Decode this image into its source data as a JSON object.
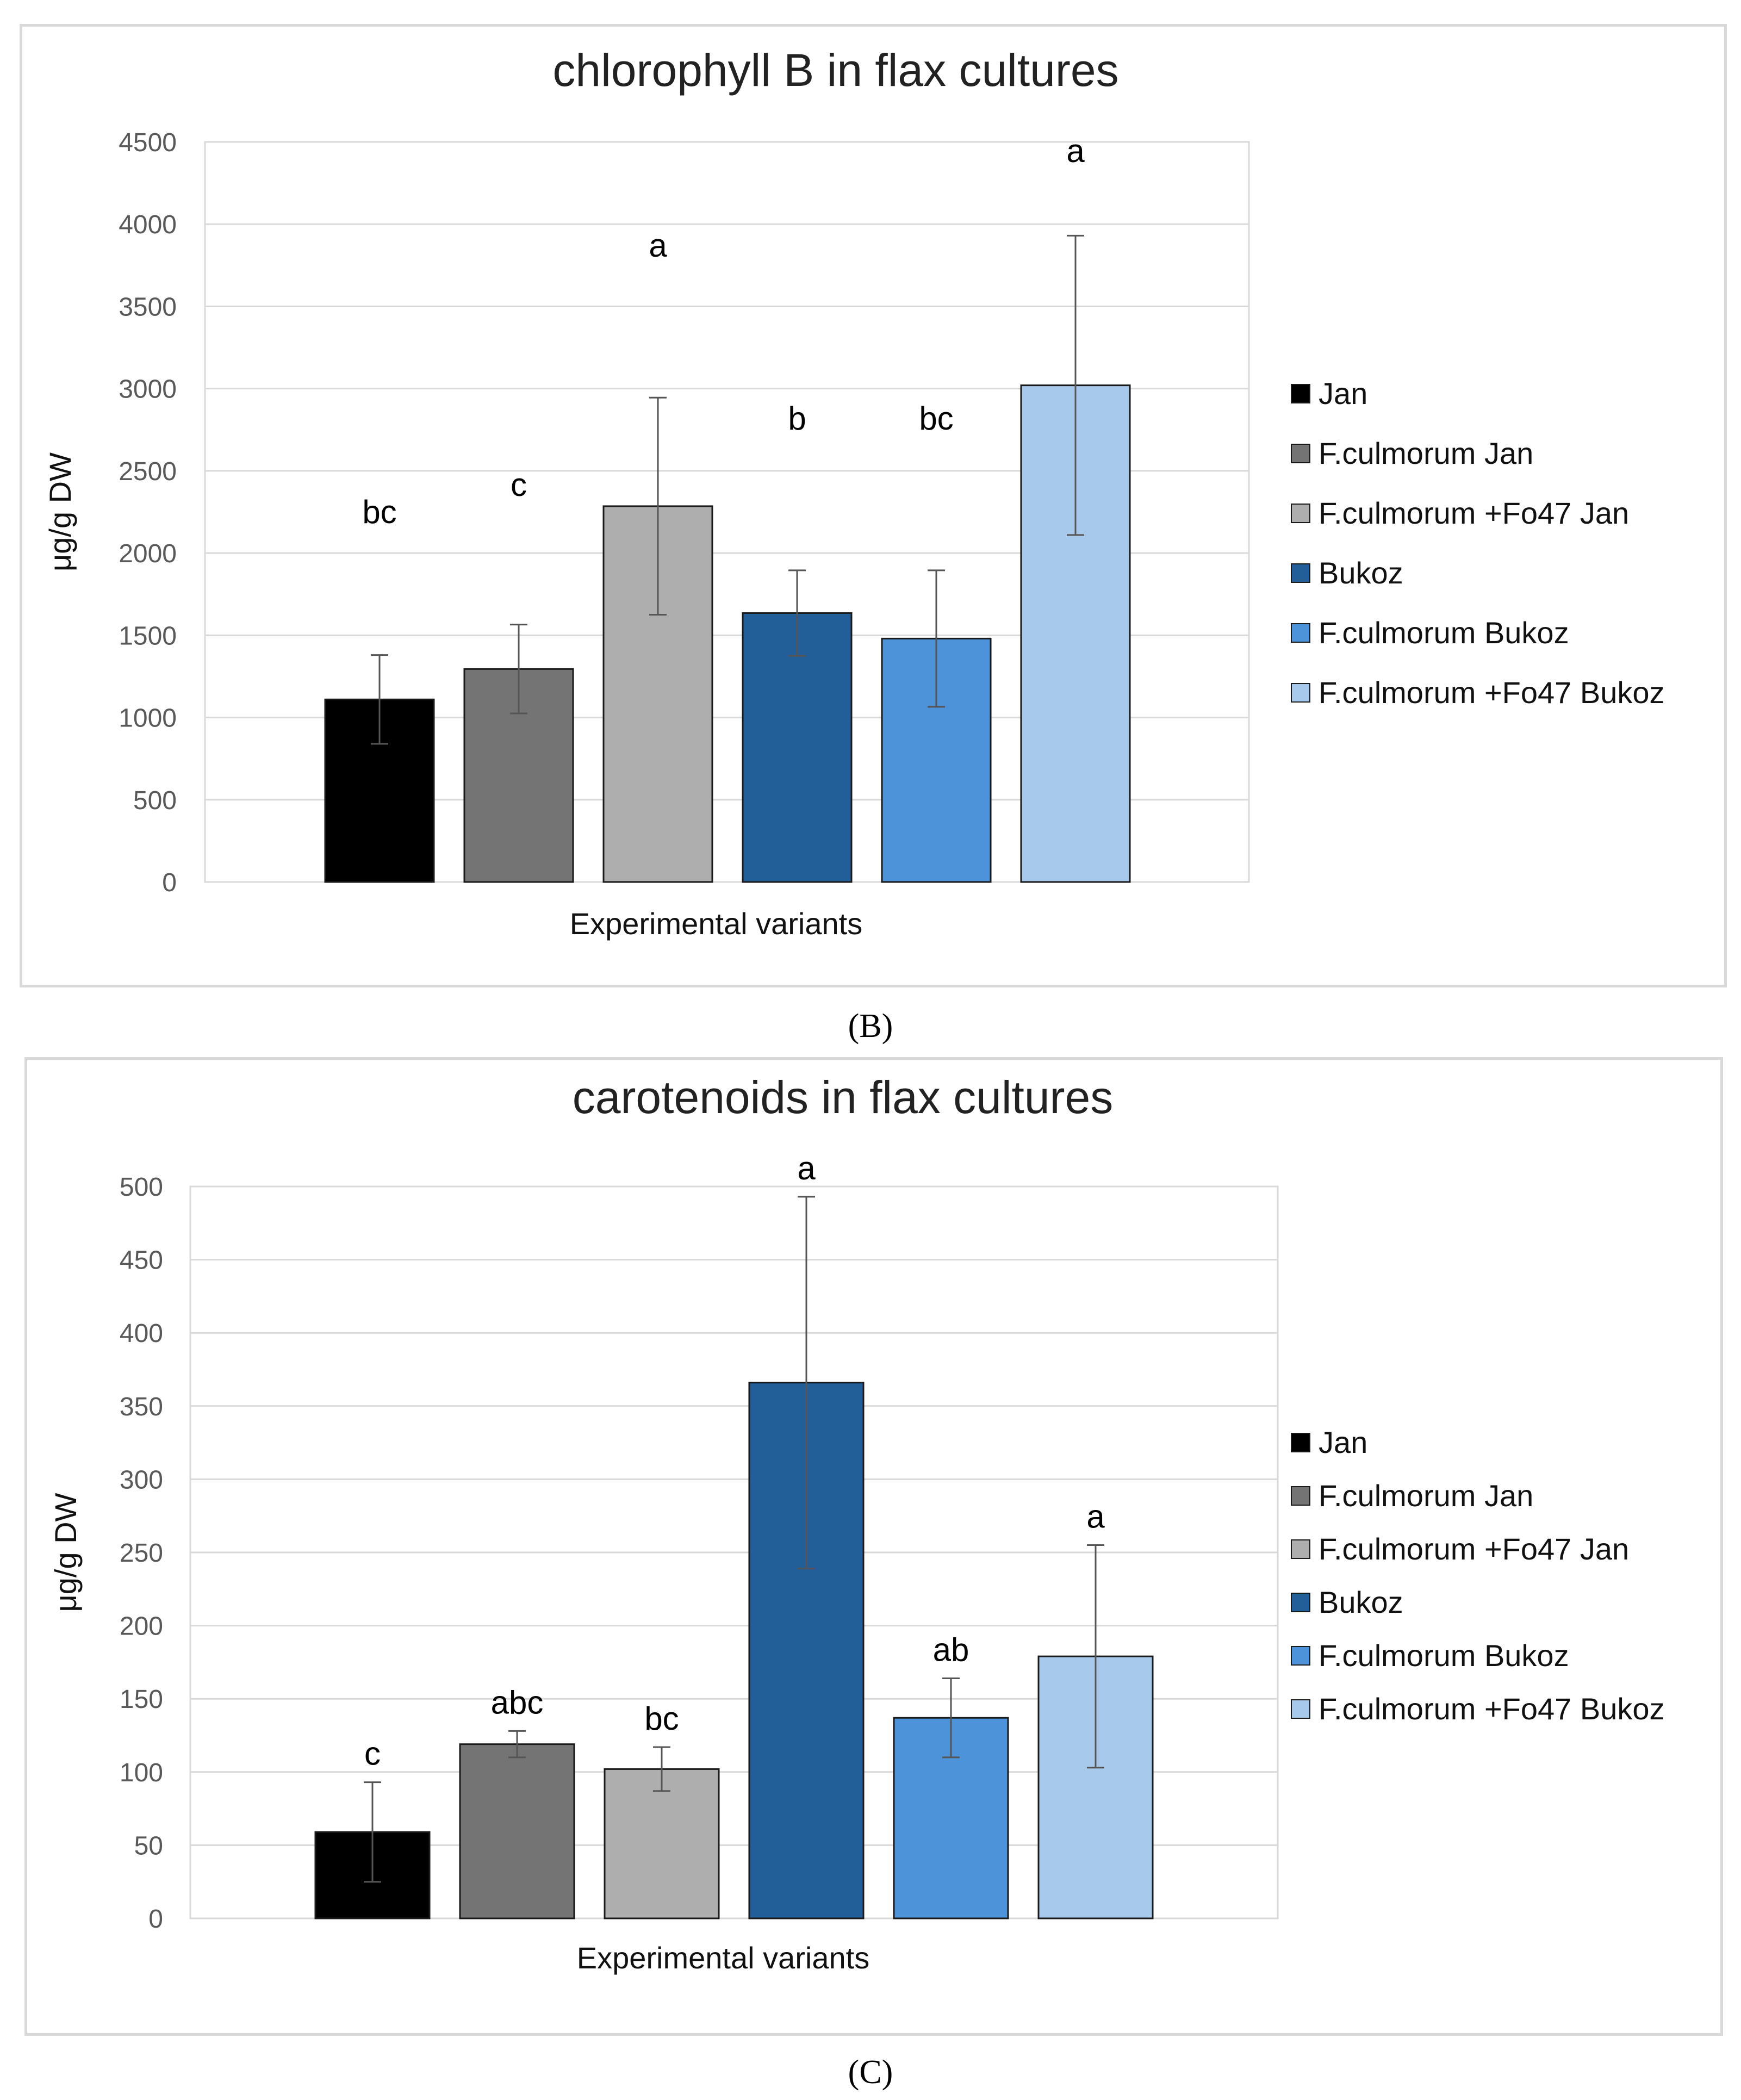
{
  "chart_data": [
    {
      "type": "bar",
      "title": "chlorophyll B in flax cultures",
      "xlabel": "Experimental variants",
      "ylabel": "μg/g DW",
      "ylim": [
        0,
        4500
      ],
      "yticks": [
        0,
        500,
        1000,
        1500,
        2000,
        2500,
        3000,
        3500,
        4000,
        4500
      ],
      "grid": true,
      "legend_position": "right",
      "panel_label": "(B)",
      "series": [
        {
          "name": "Jan",
          "value": 1110,
          "error": 270,
          "letter": "bc",
          "color": "#000000"
        },
        {
          "name": "F.culmorum Jan",
          "value": 1295,
          "error": 270,
          "letter": "c",
          "color": "#747474"
        },
        {
          "name": "F.culmorum +Fo47 Jan",
          "value": 2285,
          "error": 660,
          "letter": "a",
          "color": "#aeaeae"
        },
        {
          "name": "Bukoz",
          "value": 1635,
          "error": 260,
          "letter": "b",
          "color": "#225e98"
        },
        {
          "name": "F.culmorum  Bukoz",
          "value": 1480,
          "error": 415,
          "letter": "bc",
          "color": "#4d93d9"
        },
        {
          "name": "F.culmorum +Fo47 Bukoz",
          "value": 3020,
          "error": 910,
          "letter": "a",
          "color": "#a7c9ec"
        }
      ]
    },
    {
      "type": "bar",
      "title": "carotenoids in flax cultures",
      "xlabel": "Experimental variants",
      "ylabel": "μg/g DW",
      "ylim": [
        0,
        500
      ],
      "yticks": [
        0,
        50,
        100,
        150,
        200,
        250,
        300,
        350,
        400,
        450,
        500
      ],
      "grid": true,
      "legend_position": "right",
      "panel_label": "(C)",
      "series": [
        {
          "name": "Jan",
          "value": 59,
          "error": 34,
          "letter": "c",
          "color": "#000000"
        },
        {
          "name": "F.culmorum Jan",
          "value": 119,
          "error": 9,
          "letter": "abc",
          "color": "#747474"
        },
        {
          "name": "F.culmorum +Fo47 Jan",
          "value": 102,
          "error": 15,
          "letter": "bc",
          "color": "#aeaeae"
        },
        {
          "name": "Bukoz",
          "value": 366,
          "error": 127,
          "letter": "a",
          "color": "#225e98"
        },
        {
          "name": "F.culmorum  Bukoz",
          "value": 137,
          "error": 27,
          "letter": "ab",
          "color": "#4d93d9"
        },
        {
          "name": "F.culmorum +Fo47 Bukoz",
          "value": 179,
          "error": 76,
          "letter": "a",
          "color": "#a7c9ec"
        }
      ]
    }
  ]
}
